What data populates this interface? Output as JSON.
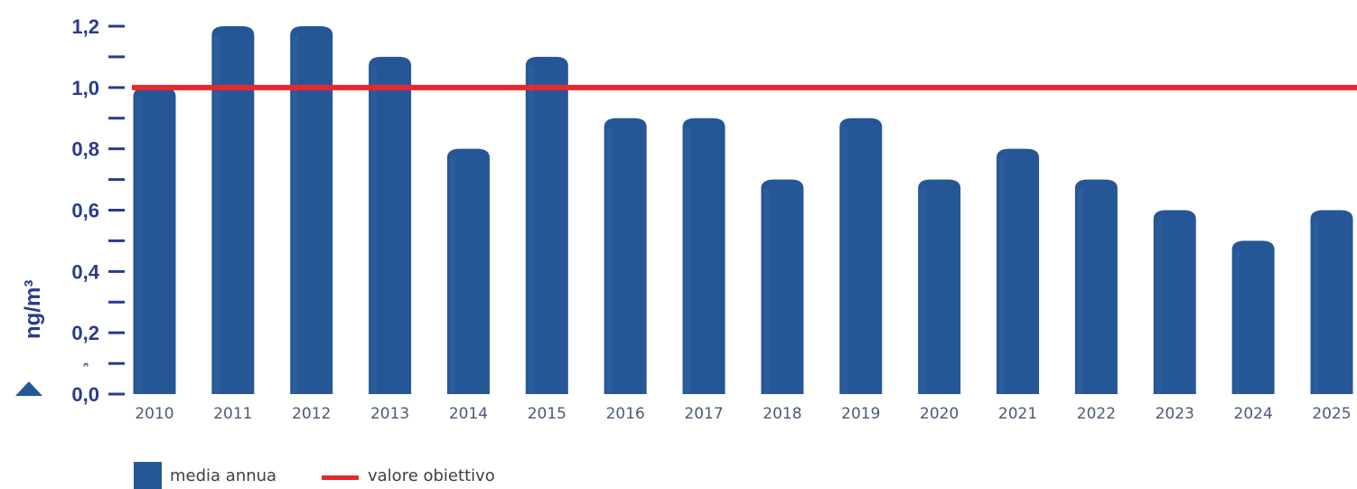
{
  "chart_data": {
    "type": "bar",
    "categories": [
      "2010",
      "2011",
      "2012",
      "2013",
      "2014",
      "2015",
      "2016",
      "2017",
      "2018",
      "2019",
      "2020",
      "2021",
      "2022",
      "2023",
      "2024",
      "2025"
    ],
    "series": [
      {
        "name": "media annua",
        "values": [
          1.0,
          1.2,
          1.2,
          1.1,
          0.8,
          1.1,
          0.9,
          0.9,
          0.7,
          0.9,
          0.7,
          0.8,
          0.7,
          0.6,
          0.5,
          0.6
        ]
      }
    ],
    "reference_line": {
      "name": "valore obiettivo",
      "value": 1.0
    },
    "ylabel": "ng/m³",
    "ylabel_extra": "³",
    "ylim": [
      0,
      1.2
    ],
    "ytick_labels": [
      "0,0",
      "0,2",
      "0,4",
      "0,6",
      "0,8",
      "1,0",
      "1,2"
    ],
    "ytick_values": [
      0,
      0.2,
      0.4,
      0.6,
      0.8,
      1.0,
      1.2
    ],
    "legend_position": "bottom-left",
    "grid": false
  },
  "colors": {
    "bar": "#255796",
    "bar_highlight": "#3a6aa6",
    "reference_line": "#e8282d",
    "axis_text": "#2a3a8c",
    "xtick_text": "#4b5a74",
    "legend_text": "#3f3f3f"
  }
}
